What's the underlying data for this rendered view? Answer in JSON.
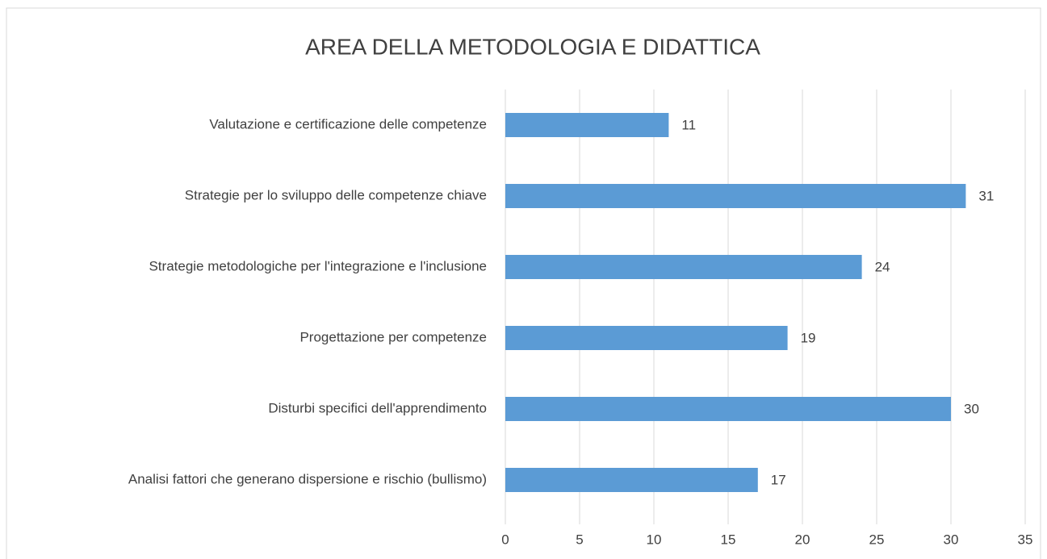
{
  "chart_data": {
    "type": "barh",
    "title": "AREA DELLA METODOLOGIA E DIDATTICA",
    "categories": [
      "Valutazione e certificazione delle competenze",
      "Strategie per lo sviluppo delle competenze chiave",
      "Strategie metodologiche per l'integrazione e l'inclusione",
      "Progettazione per competenze",
      "Disturbi specifici dell'apprendimento",
      "Analisi fattori che generano dispersione e rischio (bullismo)"
    ],
    "values": [
      11,
      31,
      24,
      19,
      30,
      17
    ],
    "color": "#5b9bd5",
    "xlim": [
      0,
      35
    ],
    "xticks": [
      0,
      5,
      10,
      15,
      20,
      25,
      30,
      35
    ],
    "grid": true
  }
}
